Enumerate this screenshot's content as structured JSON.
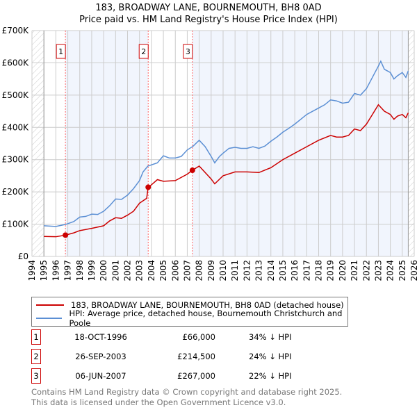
{
  "chart_data": {
    "type": "line",
    "title": "183, BROADWAY LANE, BOURNEMOUTH, BH8 0AD",
    "subtitle": "Price paid vs. HM Land Registry's House Price Index (HPI)",
    "xlim": [
      1994,
      2026
    ],
    "ylim": [
      0,
      700000
    ],
    "y_ticks": [
      {
        "v": 0,
        "label": "£0"
      },
      {
        "v": 100000,
        "label": "£100K"
      },
      {
        "v": 200000,
        "label": "£200K"
      },
      {
        "v": 300000,
        "label": "£300K"
      },
      {
        "v": 400000,
        "label": "£400K"
      },
      {
        "v": 500000,
        "label": "£500K"
      },
      {
        "v": 600000,
        "label": "£600K"
      },
      {
        "v": 700000,
        "label": "£700K"
      }
    ],
    "x_ticks": [
      "1994",
      "1995",
      "1996",
      "1997",
      "1998",
      "1999",
      "2000",
      "2001",
      "2002",
      "2003",
      "2004",
      "2005",
      "2006",
      "2007",
      "2008",
      "2009",
      "2010",
      "2011",
      "2012",
      "2013",
      "2014",
      "2015",
      "2016",
      "2017",
      "2018",
      "2019",
      "2020",
      "2021",
      "2022",
      "2023",
      "2024",
      "2025",
      "2026"
    ],
    "grid": true,
    "series": [
      {
        "name": "183, BROADWAY LANE, BOURNEMOUTH, BH8 0AD (detached house)",
        "color": "#cc0000",
        "x": [
          1995,
          1996,
          1996.8,
          1997.5,
          1998,
          1999,
          2000,
          2000.5,
          2001,
          2001.5,
          2002,
          2002.5,
          2003,
          2003.6,
          2003.73,
          2004,
          2004.5,
          2005,
          2006,
          2007,
          2007.43,
          2008,
          2009,
          2009.3,
          2010,
          2011,
          2012,
          2013,
          2014,
          2015,
          2016,
          2017,
          2018,
          2019,
          2019.5,
          2020,
          2020.5,
          2021,
          2021.5,
          2022,
          2022.5,
          2023,
          2023.5,
          2024,
          2024.3,
          2024.6,
          2025,
          2025.3,
          2025.5
        ],
        "y": [
          62000,
          61000,
          66000,
          73000,
          80000,
          87000,
          95000,
          110000,
          120000,
          118000,
          128000,
          140000,
          165000,
          180000,
          214500,
          222000,
          238000,
          233000,
          235000,
          255000,
          267000,
          280000,
          240000,
          225000,
          250000,
          262000,
          262000,
          260000,
          275000,
          300000,
          320000,
          340000,
          360000,
          375000,
          370000,
          370000,
          375000,
          395000,
          390000,
          410000,
          440000,
          470000,
          450000,
          440000,
          425000,
          435000,
          440000,
          430000,
          445000
        ]
      },
      {
        "name": "HPI: Average price, detached house, Bournemouth Christchurch and Poole",
        "color": "#5b8fd4",
        "x": [
          1995,
          1996,
          1996.8,
          1997.5,
          1998,
          1998.5,
          1999,
          1999.5,
          2000,
          2000.5,
          2001,
          2001.5,
          2002,
          2002.5,
          2003,
          2003.3,
          2003.7,
          2004.5,
          2005,
          2005.5,
          2006,
          2006.5,
          2007,
          2007.5,
          2008,
          2008.5,
          2009,
          2009.3,
          2009.7,
          2010,
          2010.5,
          2011,
          2011.5,
          2012,
          2012.5,
          2013,
          2013.5,
          2014,
          2014.5,
          2015,
          2015.5,
          2016,
          2016.5,
          2017,
          2017.5,
          2018,
          2018.5,
          2019,
          2019.5,
          2020,
          2020.5,
          2021,
          2021.5,
          2022,
          2022.5,
          2023,
          2023.2,
          2023.5,
          2024,
          2024.3,
          2024.6,
          2025,
          2025.3,
          2025.5
        ],
        "y": [
          95000,
          93000,
          99000,
          108000,
          122000,
          124000,
          131000,
          130000,
          140000,
          157000,
          178000,
          177000,
          190000,
          210000,
          235000,
          262000,
          280000,
          290000,
          312000,
          305000,
          305000,
          310000,
          330000,
          342000,
          360000,
          340000,
          310000,
          290000,
          310000,
          320000,
          335000,
          338000,
          335000,
          335000,
          340000,
          335000,
          342000,
          357000,
          370000,
          385000,
          397000,
          410000,
          425000,
          440000,
          450000,
          460000,
          470000,
          485000,
          482000,
          475000,
          478000,
          505000,
          500000,
          520000,
          555000,
          590000,
          605000,
          580000,
          570000,
          550000,
          560000,
          570000,
          555000,
          575000
        ]
      }
    ],
    "sales": [
      {
        "label": "1",
        "x": 1996.8,
        "y": 66000,
        "date": "18-OCT-1996",
        "price": "£66,000",
        "hpi": "34% ↓ HPI"
      },
      {
        "label": "2",
        "x": 2003.73,
        "y": 214500,
        "date": "26-SEP-2003",
        "price": "£214,500",
        "hpi": "24% ↓ HPI"
      },
      {
        "label": "3",
        "x": 2007.43,
        "y": 267000,
        "date": "06-JUN-2007",
        "price": "£267,000",
        "hpi": "22% ↓ HPI"
      }
    ],
    "data_end": 2025.5
  },
  "footer": {
    "line1": "Contains HM Land Registry data © Crown copyright and database right 2025.",
    "line2": "This data is licensed under the Open Government Licence v3.0."
  }
}
